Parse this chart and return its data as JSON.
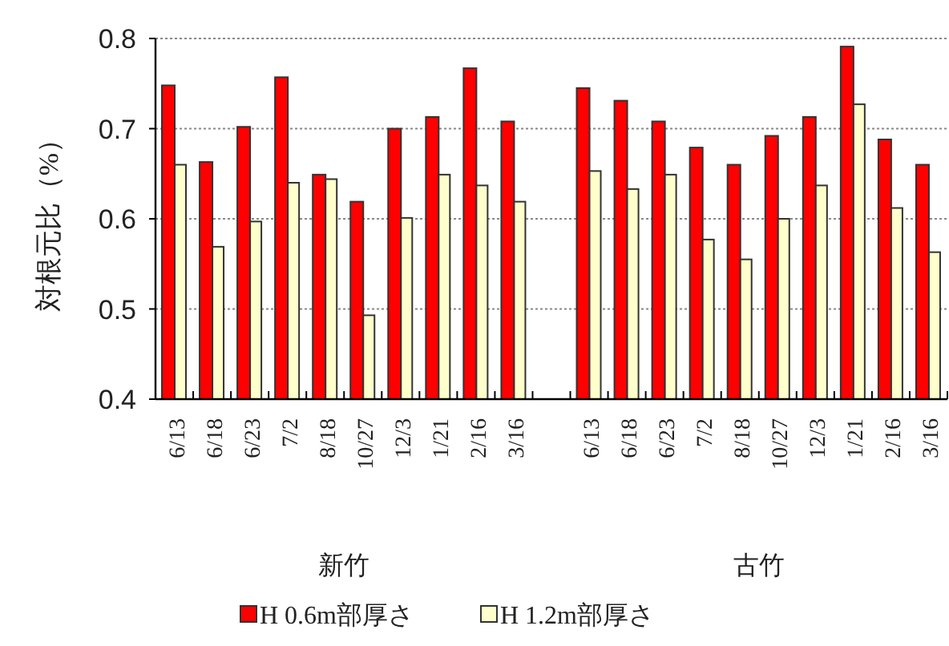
{
  "chart_data": {
    "type": "bar",
    "ylabel": "対根元比（%）",
    "categories": [
      "6/13",
      "6/18",
      "6/23",
      "7/2",
      "8/18",
      "10/27",
      "12/3",
      "1/21",
      "2/16",
      "3/16",
      null,
      "6/13",
      "6/18",
      "6/23",
      "7/2",
      "8/18",
      "10/27",
      "12/3",
      "1/21",
      "2/16",
      "3/16"
    ],
    "series": [
      {
        "name": "H 0.6m部厚さ",
        "color": "#ff0000",
        "values": [
          0.748,
          0.663,
          0.702,
          0.757,
          0.649,
          0.619,
          0.7,
          0.713,
          0.767,
          0.708,
          null,
          0.745,
          0.731,
          0.708,
          0.679,
          0.66,
          0.692,
          0.713,
          0.791,
          0.688,
          0.66
        ]
      },
      {
        "name": "H 1.2m部厚さ",
        "color": "#ffffcc",
        "values": [
          0.66,
          0.569,
          0.597,
          0.64,
          0.644,
          0.493,
          0.601,
          0.649,
          0.637,
          0.619,
          null,
          0.653,
          0.633,
          0.649,
          0.577,
          0.555,
          0.6,
          0.637,
          0.727,
          0.612,
          0.563
        ]
      }
    ],
    "ylim": [
      0.4,
      0.8
    ],
    "yticks": [
      0.4,
      0.5,
      0.6,
      0.7,
      0.8
    ],
    "grid": "y",
    "legend": "bottom",
    "annotations": [
      "新竹",
      "古竹"
    ]
  }
}
